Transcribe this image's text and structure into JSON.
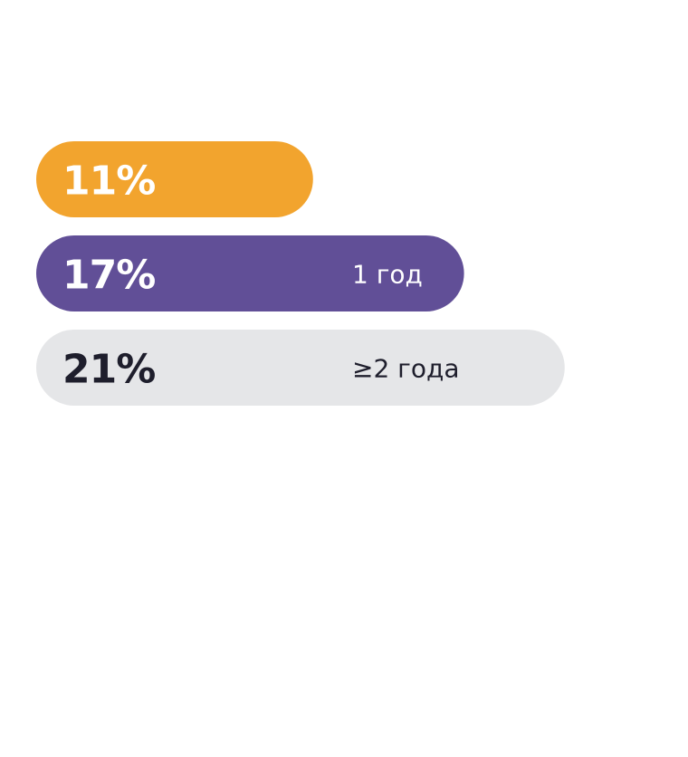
{
  "chart_data": {
    "type": "bar",
    "orientation": "horizontal",
    "categories": [
      null,
      "1 год",
      "≥2 года"
    ],
    "values": [
      11,
      17,
      21
    ],
    "value_labels": [
      "11%",
      "17%",
      "21%"
    ],
    "colors": [
      "#f2a42e",
      "#614f97",
      "#e5e6e8"
    ],
    "text_colors": [
      "#ffffff",
      "#ffffff",
      "#1e1e2c"
    ]
  }
}
